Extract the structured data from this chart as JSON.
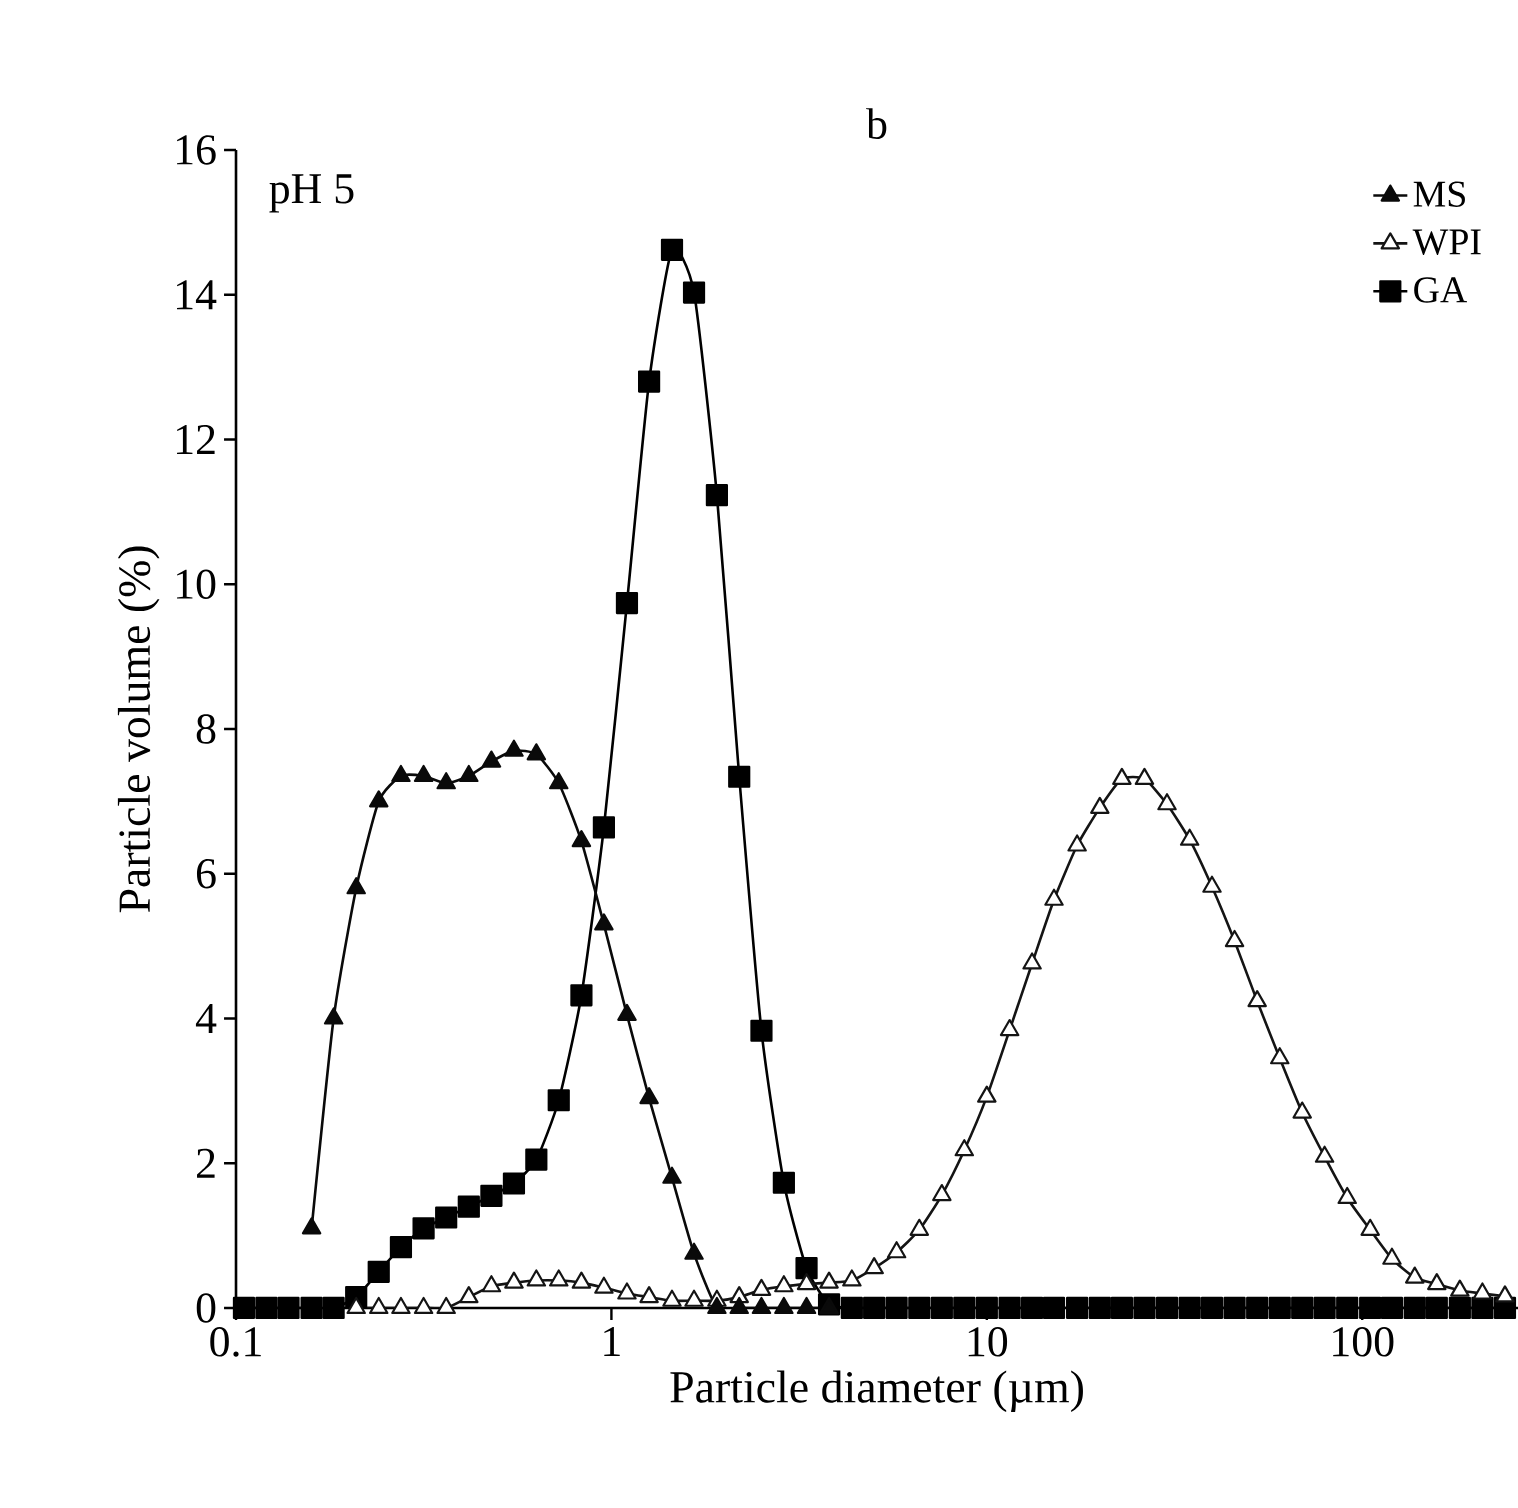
{
  "chart_data": {
    "type": "line",
    "title": "b",
    "xlabel": "Particle diameter (µm)",
    "ylabel": "Particle volume (%)",
    "annotations": [
      "pH 5"
    ],
    "log": "x",
    "xlim": [
      0.1,
      260
    ],
    "ylim": [
      0,
      16
    ],
    "xticks": [
      0.1,
      1,
      10,
      100
    ],
    "yticks": [
      0,
      2,
      4,
      6,
      8,
      10,
      12,
      14,
      16
    ],
    "grid": false,
    "legend": "top right",
    "line_style": "solid",
    "x": [
      0.105,
      0.1205,
      0.138,
      0.159,
      0.182,
      0.209,
      0.24,
      0.275,
      0.316,
      0.363,
      0.417,
      0.479,
      0.55,
      0.631,
      0.724,
      0.832,
      0.955,
      1.1,
      1.26,
      1.45,
      1.66,
      1.91,
      2.19,
      2.51,
      2.88,
      3.31,
      3.8,
      4.37,
      5.01,
      5.75,
      6.61,
      7.59,
      8.71,
      10.0,
      11.5,
      13.2,
      15.1,
      17.4,
      20.0,
      22.9,
      26.3,
      30.2,
      34.7,
      39.8,
      45.7,
      52.5,
      60.3,
      69.2,
      79.4,
      91.2,
      105,
      120,
      138,
      158,
      182,
      209,
      240
    ],
    "series": [
      {
        "name": "MS",
        "color": "#0a0a0a",
        "marker": "triangle",
        "values": [
          null,
          null,
          null,
          1.1,
          4.0,
          5.8,
          7.0,
          7.35,
          7.35,
          7.25,
          7.35,
          7.55,
          7.7,
          7.65,
          7.25,
          6.45,
          5.3,
          4.05,
          2.9,
          1.8,
          0.75,
          0,
          0,
          0,
          0,
          0,
          0,
          null,
          null,
          null,
          null,
          null,
          null,
          null,
          null,
          null,
          null,
          null,
          null,
          null,
          null,
          null,
          null,
          null,
          null,
          null,
          null,
          null,
          null,
          null,
          null,
          null,
          null,
          null,
          null,
          null,
          null
        ]
      },
      {
        "name": "WPI",
        "color": "#141414",
        "marker": "triangle",
        "values": [
          null,
          null,
          null,
          null,
          null,
          0,
          0,
          0,
          0,
          0,
          0.15,
          0.3,
          0.35,
          0.38,
          0.38,
          0.35,
          0.28,
          0.2,
          0.15,
          0.1,
          0.1,
          0.1,
          0.15,
          0.25,
          0.3,
          0.33,
          0.35,
          0.38,
          0.55,
          0.77,
          1.08,
          1.56,
          2.18,
          2.92,
          3.84,
          4.76,
          5.64,
          6.39,
          6.91,
          7.31,
          7.31,
          6.96,
          6.47,
          5.82,
          5.07,
          4.24,
          3.45,
          2.7,
          2.09,
          1.52,
          1.08,
          0.68,
          0.42,
          0.33,
          0.24,
          0.2,
          0.16
        ]
      },
      {
        "name": "GA",
        "color": "#000000",
        "marker": "square",
        "values": [
          0,
          0,
          0,
          0,
          0,
          0.15,
          0.5,
          0.84,
          1.1,
          1.25,
          1.4,
          1.55,
          1.72,
          2.05,
          2.87,
          4.32,
          6.64,
          9.74,
          12.8,
          14.62,
          14.03,
          11.23,
          7.34,
          3.83,
          1.73,
          0.55,
          0.05,
          0,
          0,
          0,
          0,
          0,
          0,
          0,
          0,
          0,
          0,
          0,
          0,
          0,
          0,
          0,
          0,
          0,
          0,
          0,
          0,
          0,
          0,
          0,
          0,
          0,
          0,
          0,
          0,
          0,
          0
        ]
      }
    ]
  }
}
